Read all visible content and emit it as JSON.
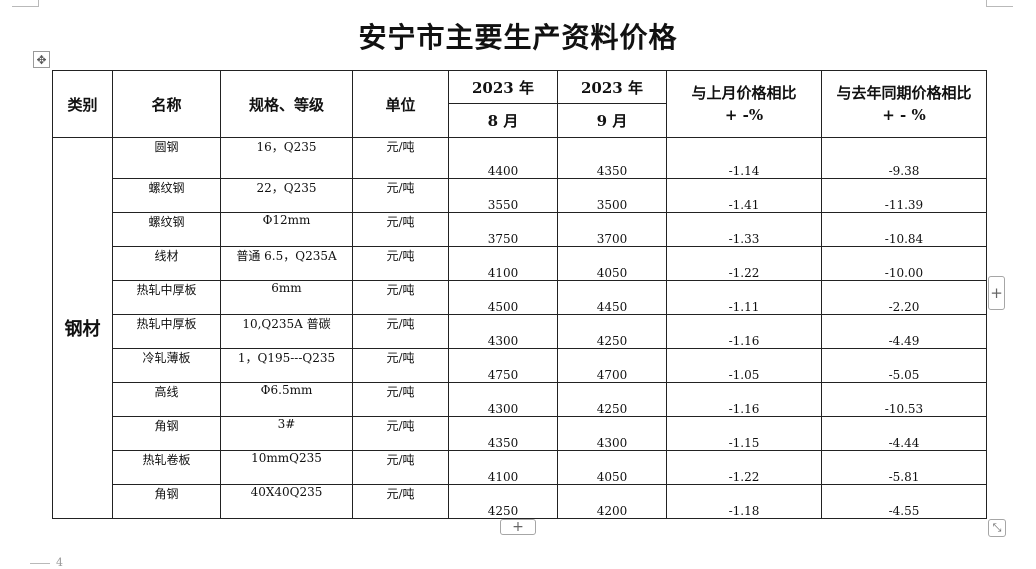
{
  "title": "安宁市主要生产资料价格",
  "header": {
    "category": "类别",
    "name": "名称",
    "spec": "规格、等级",
    "unit": "单位",
    "col1_year": "2023 年",
    "col1_month": "8 月",
    "col2_year": "2023 年",
    "col2_month": "9 月",
    "mom_line1": "与上月价格相比",
    "mom_line2": "+ -%",
    "yoy_line1": "与去年同期价格相比",
    "yoy_line2": "+ - %"
  },
  "category": "钢材",
  "rows": [
    {
      "name": "圆钢",
      "spec": "16，Q235",
      "unit": "元/吨",
      "aug": "4400",
      "sep": "4350",
      "mom": "-1.14",
      "yoy": "-9.38"
    },
    {
      "name": "螺纹钢",
      "spec": "22，Q235",
      "unit": "元/吨",
      "aug": "3550",
      "sep": "3500",
      "mom": "-1.41",
      "yoy": "-11.39"
    },
    {
      "name": "螺纹钢",
      "spec": "Φ12mm",
      "unit": "元/吨",
      "aug": "3750",
      "sep": "3700",
      "mom": "-1.33",
      "yoy": "-10.84"
    },
    {
      "name": "线材",
      "spec": "普通 6.5，Q235A",
      "unit": "元/吨",
      "aug": "4100",
      "sep": "4050",
      "mom": "-1.22",
      "yoy": "-10.00"
    },
    {
      "name": "热轧中厚板",
      "spec": "6mm",
      "unit": "元/吨",
      "aug": "4500",
      "sep": "4450",
      "mom": "-1.11",
      "yoy": "-2.20"
    },
    {
      "name": "热轧中厚板",
      "spec": "10,Q235A 普碳",
      "unit": "元/吨",
      "aug": "4300",
      "sep": "4250",
      "mom": "-1.16",
      "yoy": "-4.49"
    },
    {
      "name": "冷轧薄板",
      "spec": "1，Q195---Q235",
      "unit": "元/吨",
      "aug": "4750",
      "sep": "4700",
      "mom": "-1.05",
      "yoy": "-5.05"
    },
    {
      "name": "高线",
      "spec": "Φ6.5mm",
      "unit": "元/吨",
      "aug": "4300",
      "sep": "4250",
      "mom": "-1.16",
      "yoy": "-10.53"
    },
    {
      "name": "角钢",
      "spec": "3#",
      "unit": "元/吨",
      "aug": "4350",
      "sep": "4300",
      "mom": "-1.15",
      "yoy": "-4.44"
    },
    {
      "name": "热轧卷板",
      "spec": "10mmQ235",
      "unit": "元/吨",
      "aug": "4100",
      "sep": "4050",
      "mom": "-1.22",
      "yoy": "-5.81"
    },
    {
      "name": "角钢",
      "spec": "40X40Q235",
      "unit": "元/吨",
      "aug": "4250",
      "sep": "4200",
      "mom": "-1.18",
      "yoy": "-4.55"
    }
  ],
  "controls": {
    "move_icon": "move-arrows-icon",
    "add_column_icon": "plus-icon",
    "add_row_icon": "plus-icon",
    "resize_icon": "resize-diagonal-icon"
  },
  "page_number": "4"
}
